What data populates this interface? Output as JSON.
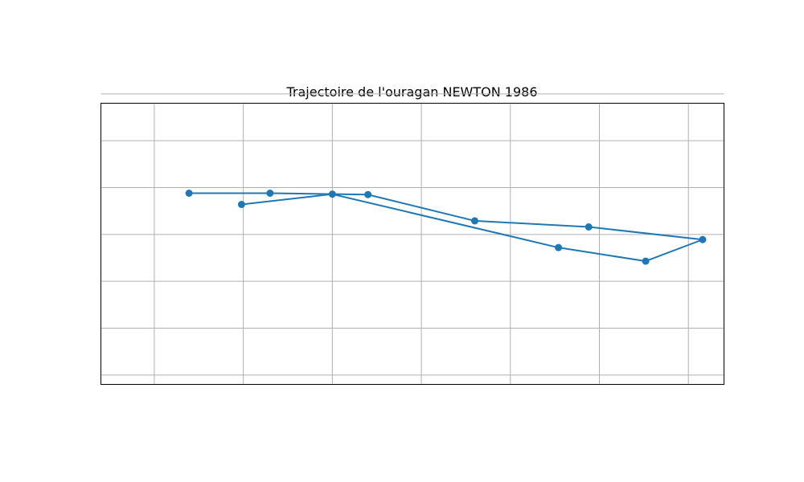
{
  "chart_data": {
    "type": "line",
    "title": "Trajectoire de l'ouragan NEWTON 1986",
    "xlabel": "",
    "ylabel": "",
    "grid": true,
    "legend": "none",
    "xlim": [
      0,
      7
    ],
    "ylim": [
      0,
      6
    ],
    "x_grid": [
      0.6,
      1.6,
      2.6,
      3.6,
      4.6,
      5.6,
      6.6
    ],
    "y_grid": [
      0.2,
      1.2,
      2.2,
      3.2,
      4.2,
      5.2,
      6.2
    ],
    "series": [
      {
        "name": "",
        "color": "#1f77b4",
        "marker": "circle",
        "x": [
          1.58,
          2.6,
          5.14,
          6.12,
          6.76,
          5.48,
          4.2,
          3.0,
          1.9,
          0.99
        ],
        "y": [
          3.84,
          4.06,
          2.92,
          2.63,
          3.09,
          3.36,
          3.49,
          4.05,
          4.08,
          4.08
        ]
      }
    ]
  }
}
